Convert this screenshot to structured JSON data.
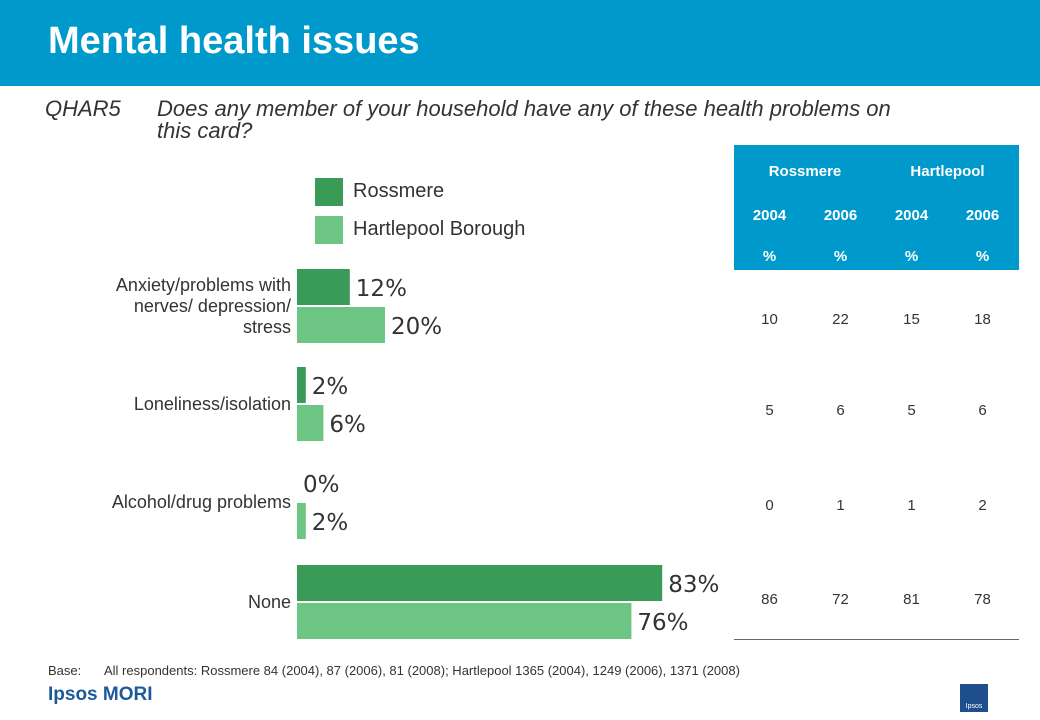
{
  "header": {
    "title": "Mental health issues"
  },
  "question": {
    "code": "QHAR5",
    "text": "Does any member of your household have any of these health problems on this card?"
  },
  "legend": [
    {
      "label": "Rossmere",
      "color": "#3a9a58"
    },
    {
      "label": "Hartlepool Borough",
      "color": "#6cc582"
    }
  ],
  "chart_data": {
    "type": "bar",
    "orientation": "horizontal",
    "categories": [
      "Anxiety/problems with nerves/ depression/ stress",
      "Loneliness/isolation",
      "Alcohol/drug problems",
      "None"
    ],
    "series": [
      {
        "name": "Rossmere",
        "values": [
          12,
          2,
          0,
          83
        ],
        "labels": [
          "12%",
          "2%",
          "0%",
          "83%"
        ],
        "color": "#3a9a58"
      },
      {
        "name": "Hartlepool Borough",
        "values": [
          20,
          6,
          2,
          76
        ],
        "labels": [
          "20%",
          "6%",
          "2%",
          "76%"
        ],
        "color": "#6cc582"
      }
    ],
    "xlim": [
      0,
      100
    ],
    "grid": false,
    "legend_position": "top"
  },
  "table": {
    "groups": [
      "Rossmere",
      "Hartlepool"
    ],
    "years": [
      "2004",
      "2006",
      "2004",
      "2006"
    ],
    "units": [
      "%",
      "%",
      "%",
      "%"
    ],
    "rows": [
      [
        "10",
        "22",
        "15",
        "18"
      ],
      [
        "5",
        "6",
        "5",
        "6"
      ],
      [
        "0",
        "1",
        "1",
        "2"
      ],
      [
        "86",
        "72",
        "81",
        "78"
      ]
    ]
  },
  "footer": {
    "base_label": "Base:",
    "base_text": "All respondents: Rossmere 84 (2004), 87 (2006), 81 (2008); Hartlepool 1365 (2004), 1249 (2006), 1371 (2008)",
    "brand": "Ipsos MORI",
    "logo_text": "Ipsos"
  },
  "colors": {
    "header": "#0099cc",
    "brand": "#1e5a99"
  }
}
